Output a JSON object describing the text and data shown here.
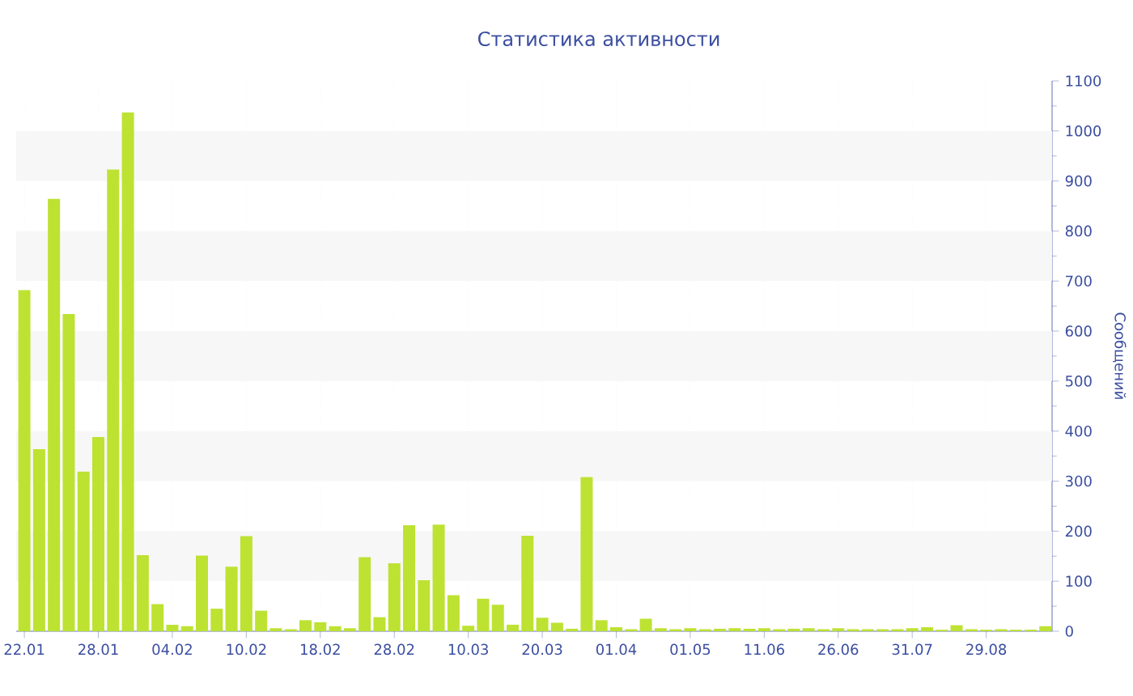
{
  "chart_data": {
    "type": "bar",
    "title": "Статистика активности",
    "ylabel": "Сообщений",
    "categories": [
      "22.01",
      null,
      null,
      null,
      null,
      "28.01",
      null,
      null,
      null,
      null,
      "04.02",
      null,
      null,
      null,
      null,
      "10.02",
      null,
      null,
      null,
      null,
      "18.02",
      null,
      null,
      null,
      null,
      "28.02",
      null,
      null,
      null,
      null,
      "10.03",
      null,
      null,
      null,
      null,
      "20.03",
      null,
      null,
      null,
      null,
      "01.04",
      null,
      null,
      null,
      null,
      "01.05",
      null,
      null,
      null,
      null,
      "11.06",
      null,
      null,
      null,
      null,
      "26.06",
      null,
      null,
      null,
      null,
      "31.07",
      null,
      null,
      null,
      null,
      "29.08",
      null,
      null,
      null,
      null
    ],
    "values": [
      682,
      364,
      864,
      634,
      319,
      388,
      923,
      1037,
      152,
      54,
      13,
      10,
      151,
      45,
      129,
      190,
      41,
      6,
      4,
      22,
      18,
      10,
      6,
      148,
      28,
      136,
      212,
      102,
      213,
      72,
      11,
      65,
      53,
      13,
      191,
      27,
      17,
      5,
      308,
      22,
      8,
      4,
      25,
      6,
      4,
      6,
      4,
      5,
      6,
      5,
      6,
      4,
      5,
      6,
      4,
      6,
      4,
      4,
      4,
      4,
      6,
      8,
      3,
      12,
      4,
      3,
      4,
      3,
      3,
      10
    ],
    "color": "#bde232",
    "ylim": [
      0,
      1100
    ],
    "yticks": [
      0,
      100,
      200,
      300,
      400,
      500,
      600,
      700,
      800,
      900,
      1000,
      1100
    ],
    "grid": "x",
    "bands": [
      {
        "axis": "y",
        "from": 100,
        "to": 200,
        "color": "#f7f7f7"
      },
      {
        "axis": "y",
        "from": 300,
        "to": 400,
        "color": "#f7f7f7"
      },
      {
        "axis": "y",
        "from": 500,
        "to": 600,
        "color": "#f7f7f7"
      },
      {
        "axis": "y",
        "from": 700,
        "to": 800,
        "color": "#f7f7f7"
      },
      {
        "axis": "y",
        "from": 900,
        "to": 1000,
        "color": "#f7f7f7"
      }
    ]
  }
}
